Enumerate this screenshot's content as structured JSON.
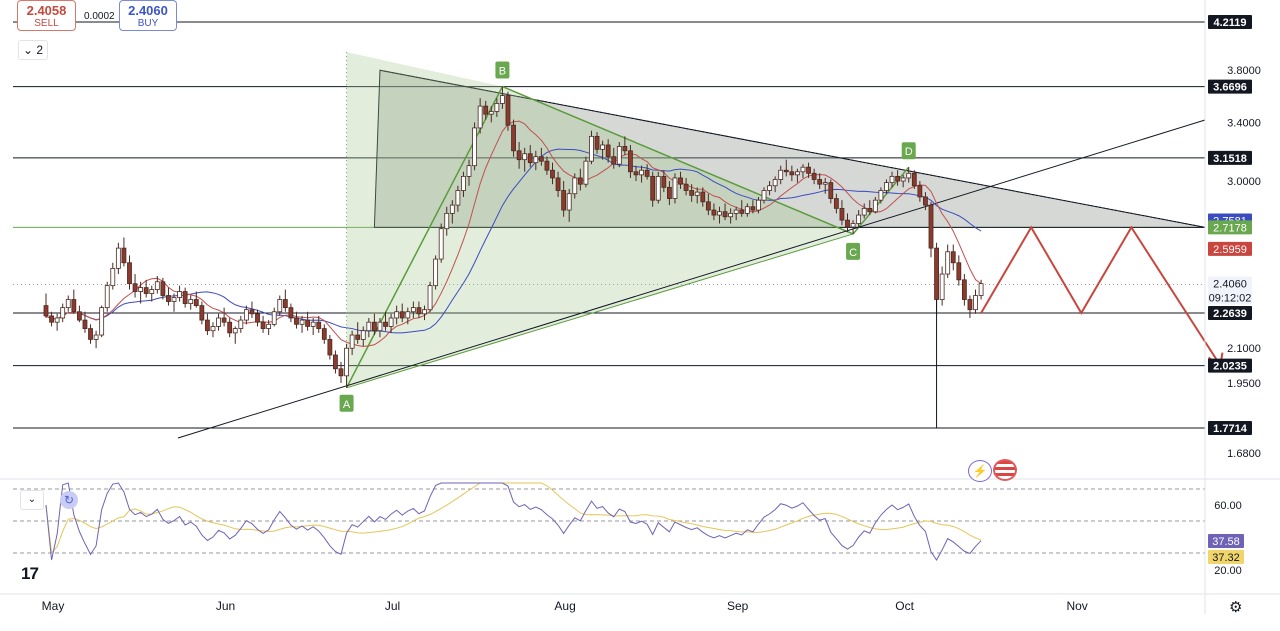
{
  "trade": {
    "sell_price": "2.4058",
    "sell_label": "SELL",
    "buy_price": "2.4060",
    "buy_label": "BUY",
    "spread": "0.0002"
  },
  "indicators_count": "2",
  "colors": {
    "candle_up": "#089981",
    "candle_down": "#8b3a2d",
    "ma_fast": "#c0504d",
    "ma_slow": "#3b4cc0",
    "pattern_fill": "#9fc58a",
    "triangle_fill": "#8a8f86",
    "arrow": "#c8463e",
    "rsi_line": "#6f63b5",
    "rsi_ma": "#e3c65a"
  },
  "icons": [
    "chevron-down-icon",
    "refresh-icon",
    "flash-icon",
    "us-flag-icon",
    "settings-icon",
    "tradingview-logo"
  ],
  "chart_data": {
    "type": "candlestick",
    "price_axis_ticks": [
      "3.8000",
      "3.4000",
      "3.0000",
      "2.1000",
      "1.9500",
      "1.6800"
    ],
    "level_labels": [
      {
        "value": "4.2119",
        "style": "dark"
      },
      {
        "value": "3.6696",
        "style": "dark"
      },
      {
        "value": "3.1518",
        "style": "dark"
      },
      {
        "value": "2.7581",
        "style": "blue"
      },
      {
        "value": "2.7178",
        "style": "green"
      },
      {
        "value": "2.5959",
        "style": "red"
      },
      {
        "value": "2.4060",
        "style": "gray"
      },
      {
        "value": "09:12:02",
        "style": "gray"
      },
      {
        "value": "2.2639",
        "style": "dark"
      },
      {
        "value": "2.0235",
        "style": "dark"
      },
      {
        "value": "1.7714",
        "style": "dark"
      }
    ],
    "horizontal_levels": [
      4.2119,
      3.6696,
      3.1518,
      2.7178,
      2.2639,
      2.0235,
      1.7714
    ],
    "time_axis": [
      "May",
      "Jun",
      "Jul",
      "Aug",
      "Sep",
      "Oct",
      "Nov"
    ],
    "pattern_points": [
      {
        "label": "A",
        "date": "2024-06-24",
        "price": 1.93
      },
      {
        "label": "B",
        "date": "2024-07-22",
        "price": 3.67
      },
      {
        "label": "C",
        "date": "2024-09-23",
        "price": 2.68
      },
      {
        "label": "D",
        "date": "2024-10-03",
        "price": 3.09
      }
    ],
    "candles": [
      [
        "2024-05-01",
        2.3,
        2.36,
        2.24,
        2.25
      ],
      [
        "2024-05-02",
        2.25,
        2.27,
        2.2,
        2.22
      ],
      [
        "2024-05-03",
        2.22,
        2.26,
        2.18,
        2.24
      ],
      [
        "2024-05-04",
        2.24,
        2.31,
        2.22,
        2.29
      ],
      [
        "2024-05-05",
        2.29,
        2.35,
        2.27,
        2.33
      ],
      [
        "2024-05-06",
        2.33,
        2.38,
        2.26,
        2.27
      ],
      [
        "2024-05-07",
        2.27,
        2.3,
        2.22,
        2.23
      ],
      [
        "2024-05-08",
        2.23,
        2.27,
        2.17,
        2.19
      ],
      [
        "2024-05-09",
        2.19,
        2.21,
        2.12,
        2.14
      ],
      [
        "2024-05-10",
        2.14,
        2.18,
        2.1,
        2.16
      ],
      [
        "2024-05-11",
        2.16,
        2.3,
        2.15,
        2.29
      ],
      [
        "2024-05-12",
        2.29,
        2.42,
        2.27,
        2.4
      ],
      [
        "2024-05-13",
        2.4,
        2.52,
        2.38,
        2.49
      ],
      [
        "2024-05-14",
        2.49,
        2.63,
        2.46,
        2.6
      ],
      [
        "2024-05-15",
        2.6,
        2.66,
        2.5,
        2.52
      ],
      [
        "2024-05-16",
        2.52,
        2.56,
        2.38,
        2.41
      ],
      [
        "2024-05-17",
        2.41,
        2.46,
        2.34,
        2.37
      ],
      [
        "2024-05-18",
        2.37,
        2.42,
        2.31,
        2.39
      ],
      [
        "2024-05-19",
        2.39,
        2.43,
        2.34,
        2.36
      ],
      [
        "2024-05-20",
        2.36,
        2.4,
        2.32,
        2.38
      ],
      [
        "2024-05-21",
        2.38,
        2.45,
        2.36,
        2.42
      ],
      [
        "2024-05-22",
        2.42,
        2.44,
        2.33,
        2.35
      ],
      [
        "2024-05-23",
        2.35,
        2.39,
        2.3,
        2.32
      ],
      [
        "2024-05-24",
        2.32,
        2.36,
        2.27,
        2.34
      ],
      [
        "2024-05-25",
        2.34,
        2.4,
        2.32,
        2.37
      ],
      [
        "2024-05-26",
        2.37,
        2.39,
        2.29,
        2.31
      ],
      [
        "2024-05-27",
        2.31,
        2.35,
        2.28,
        2.33
      ],
      [
        "2024-05-28",
        2.33,
        2.37,
        2.29,
        2.3
      ],
      [
        "2024-05-29",
        2.3,
        2.32,
        2.21,
        2.23
      ],
      [
        "2024-05-30",
        2.23,
        2.26,
        2.16,
        2.18
      ],
      [
        "2024-05-31",
        2.18,
        2.22,
        2.15,
        2.2
      ],
      [
        "2024-06-01",
        2.2,
        2.26,
        2.18,
        2.24
      ],
      [
        "2024-06-02",
        2.24,
        2.29,
        2.2,
        2.22
      ],
      [
        "2024-06-03",
        2.22,
        2.24,
        2.15,
        2.17
      ],
      [
        "2024-06-04",
        2.17,
        2.2,
        2.12,
        2.19
      ],
      [
        "2024-06-05",
        2.19,
        2.25,
        2.17,
        2.23
      ],
      [
        "2024-06-06",
        2.23,
        2.3,
        2.21,
        2.28
      ],
      [
        "2024-06-07",
        2.28,
        2.32,
        2.24,
        2.26
      ],
      [
        "2024-06-08",
        2.26,
        2.28,
        2.2,
        2.22
      ],
      [
        "2024-06-09",
        2.22,
        2.25,
        2.17,
        2.19
      ],
      [
        "2024-06-10",
        2.19,
        2.23,
        2.16,
        2.21
      ],
      [
        "2024-06-11",
        2.21,
        2.29,
        2.2,
        2.27
      ],
      [
        "2024-06-12",
        2.27,
        2.35,
        2.25,
        2.33
      ],
      [
        "2024-06-13",
        2.33,
        2.38,
        2.27,
        2.29
      ],
      [
        "2024-06-14",
        2.29,
        2.31,
        2.22,
        2.24
      ],
      [
        "2024-06-15",
        2.24,
        2.27,
        2.19,
        2.21
      ],
      [
        "2024-06-16",
        2.21,
        2.25,
        2.17,
        2.23
      ],
      [
        "2024-06-17",
        2.23,
        2.27,
        2.18,
        2.2
      ],
      [
        "2024-06-18",
        2.2,
        2.24,
        2.16,
        2.22
      ],
      [
        "2024-06-19",
        2.22,
        2.25,
        2.17,
        2.19
      ],
      [
        "2024-06-20",
        2.19,
        2.21,
        2.12,
        2.14
      ],
      [
        "2024-06-21",
        2.14,
        2.16,
        2.05,
        2.07
      ],
      [
        "2024-06-22",
        2.07,
        2.09,
        1.99,
        2.01
      ],
      [
        "2024-06-23",
        2.01,
        2.04,
        1.95,
        1.98
      ],
      [
        "2024-06-24",
        1.98,
        2.12,
        1.93,
        2.1
      ],
      [
        "2024-06-25",
        2.1,
        2.18,
        2.07,
        2.16
      ],
      [
        "2024-06-26",
        2.16,
        2.22,
        2.12,
        2.14
      ],
      [
        "2024-06-27",
        2.14,
        2.2,
        2.11,
        2.18
      ],
      [
        "2024-06-28",
        2.18,
        2.24,
        2.15,
        2.22
      ],
      [
        "2024-06-29",
        2.22,
        2.26,
        2.16,
        2.18
      ],
      [
        "2024-06-30",
        2.18,
        2.24,
        2.15,
        2.22
      ],
      [
        "2024-07-01",
        2.22,
        2.27,
        2.18,
        2.2
      ],
      [
        "2024-07-02",
        2.2,
        2.26,
        2.17,
        2.24
      ],
      [
        "2024-07-03",
        2.24,
        2.3,
        2.21,
        2.27
      ],
      [
        "2024-07-04",
        2.27,
        2.31,
        2.22,
        2.24
      ],
      [
        "2024-07-05",
        2.24,
        2.29,
        2.21,
        2.27
      ],
      [
        "2024-07-06",
        2.27,
        2.32,
        2.24,
        2.29
      ],
      [
        "2024-07-07",
        2.29,
        2.32,
        2.24,
        2.26
      ],
      [
        "2024-07-08",
        2.26,
        2.3,
        2.23,
        2.28
      ],
      [
        "2024-07-09",
        2.28,
        2.42,
        2.27,
        2.4
      ],
      [
        "2024-07-10",
        2.4,
        2.56,
        2.38,
        2.54
      ],
      [
        "2024-07-11",
        2.54,
        2.74,
        2.52,
        2.71
      ],
      [
        "2024-07-12",
        2.71,
        2.84,
        2.67,
        2.8
      ],
      [
        "2024-07-13",
        2.8,
        2.88,
        2.74,
        2.85
      ],
      [
        "2024-07-14",
        2.85,
        2.97,
        2.81,
        2.94
      ],
      [
        "2024-07-15",
        2.94,
        3.06,
        2.9,
        3.03
      ],
      [
        "2024-07-16",
        3.03,
        3.14,
        2.97,
        3.1
      ],
      [
        "2024-07-17",
        3.1,
        3.4,
        3.07,
        3.36
      ],
      [
        "2024-07-18",
        3.36,
        3.58,
        3.32,
        3.52
      ],
      [
        "2024-07-19",
        3.52,
        3.56,
        3.42,
        3.46
      ],
      [
        "2024-07-20",
        3.46,
        3.52,
        3.4,
        3.48
      ],
      [
        "2024-07-21",
        3.48,
        3.58,
        3.44,
        3.54
      ],
      [
        "2024-07-22",
        3.54,
        3.67,
        3.5,
        3.6
      ],
      [
        "2024-07-23",
        3.6,
        3.63,
        3.34,
        3.38
      ],
      [
        "2024-07-24",
        3.38,
        3.42,
        3.16,
        3.2
      ],
      [
        "2024-07-25",
        3.2,
        3.26,
        3.08,
        3.14
      ],
      [
        "2024-07-26",
        3.14,
        3.22,
        3.06,
        3.18
      ],
      [
        "2024-07-27",
        3.18,
        3.24,
        3.09,
        3.12
      ],
      [
        "2024-07-28",
        3.12,
        3.2,
        3.07,
        3.16
      ],
      [
        "2024-07-29",
        3.16,
        3.22,
        3.1,
        3.13
      ],
      [
        "2024-07-30",
        3.13,
        3.16,
        3.04,
        3.07
      ],
      [
        "2024-07-31",
        3.07,
        3.12,
        2.98,
        3.02
      ],
      [
        "2024-08-01",
        3.02,
        3.06,
        2.9,
        2.94
      ],
      [
        "2024-08-02",
        2.94,
        3.0,
        2.78,
        2.82
      ],
      [
        "2024-08-03",
        2.82,
        2.95,
        2.75,
        2.92
      ],
      [
        "2024-08-04",
        2.92,
        3.05,
        2.89,
        3.02
      ],
      [
        "2024-08-05",
        3.02,
        3.08,
        2.94,
        2.98
      ],
      [
        "2024-08-06",
        2.98,
        3.16,
        2.96,
        3.13
      ],
      [
        "2024-08-07",
        3.13,
        3.34,
        3.11,
        3.3
      ],
      [
        "2024-08-08",
        3.3,
        3.33,
        3.18,
        3.21
      ],
      [
        "2024-08-09",
        3.21,
        3.27,
        3.14,
        3.24
      ],
      [
        "2024-08-10",
        3.24,
        3.28,
        3.12,
        3.16
      ],
      [
        "2024-08-11",
        3.16,
        3.22,
        3.08,
        3.11
      ],
      [
        "2024-08-12",
        3.11,
        3.26,
        3.09,
        3.23
      ],
      [
        "2024-08-13",
        3.23,
        3.3,
        3.17,
        3.2
      ],
      [
        "2024-08-14",
        3.2,
        3.24,
        3.02,
        3.06
      ],
      [
        "2024-08-15",
        3.06,
        3.1,
        3.0,
        3.04
      ],
      [
        "2024-08-16",
        3.04,
        3.1,
        2.99,
        3.07
      ],
      [
        "2024-08-17",
        3.07,
        3.11,
        3.01,
        3.03
      ],
      [
        "2024-08-18",
        3.03,
        3.06,
        2.84,
        2.88
      ],
      [
        "2024-08-19",
        2.88,
        3.06,
        2.86,
        3.03
      ],
      [
        "2024-08-20",
        3.03,
        3.07,
        2.93,
        2.96
      ],
      [
        "2024-08-21",
        2.96,
        3.0,
        2.85,
        2.89
      ],
      [
        "2024-08-22",
        2.89,
        3.05,
        2.86,
        3.02
      ],
      [
        "2024-08-23",
        3.02,
        3.06,
        2.95,
        2.98
      ],
      [
        "2024-08-24",
        2.98,
        3.02,
        2.91,
        2.94
      ],
      [
        "2024-08-25",
        2.94,
        2.98,
        2.87,
        2.91
      ],
      [
        "2024-08-26",
        2.91,
        2.96,
        2.86,
        2.93
      ],
      [
        "2024-08-27",
        2.93,
        2.96,
        2.84,
        2.87
      ],
      [
        "2024-08-28",
        2.87,
        2.92,
        2.79,
        2.82
      ],
      [
        "2024-08-29",
        2.82,
        2.86,
        2.76,
        2.79
      ],
      [
        "2024-08-30",
        2.79,
        2.84,
        2.74,
        2.81
      ],
      [
        "2024-08-31",
        2.81,
        2.86,
        2.76,
        2.78
      ],
      [
        "2024-09-01",
        2.78,
        2.83,
        2.74,
        2.8
      ],
      [
        "2024-09-02",
        2.8,
        2.84,
        2.76,
        2.82
      ],
      [
        "2024-09-03",
        2.82,
        2.88,
        2.78,
        2.8
      ],
      [
        "2024-09-04",
        2.8,
        2.86,
        2.78,
        2.84
      ],
      [
        "2024-09-05",
        2.84,
        2.88,
        2.8,
        2.82
      ],
      [
        "2024-09-06",
        2.82,
        2.9,
        2.8,
        2.88
      ],
      [
        "2024-09-07",
        2.88,
        2.96,
        2.86,
        2.94
      ],
      [
        "2024-09-08",
        2.94,
        3.0,
        2.91,
        2.97
      ],
      [
        "2024-09-09",
        2.97,
        3.03,
        2.93,
        3.01
      ],
      [
        "2024-09-10",
        3.01,
        3.1,
        2.98,
        3.07
      ],
      [
        "2024-09-11",
        3.07,
        3.14,
        3.03,
        3.06
      ],
      [
        "2024-09-12",
        3.06,
        3.1,
        3.0,
        3.04
      ],
      [
        "2024-09-13",
        3.04,
        3.08,
        2.99,
        3.06
      ],
      [
        "2024-09-14",
        3.06,
        3.11,
        3.02,
        3.09
      ],
      [
        "2024-09-15",
        3.09,
        3.12,
        3.02,
        3.05
      ],
      [
        "2024-09-16",
        3.05,
        3.08,
        2.98,
        3.01
      ],
      [
        "2024-09-17",
        3.01,
        3.05,
        2.95,
        2.98
      ],
      [
        "2024-09-18",
        2.98,
        3.02,
        2.92,
        2.99
      ],
      [
        "2024-09-19",
        2.99,
        3.01,
        2.86,
        2.89
      ],
      [
        "2024-09-20",
        2.89,
        2.92,
        2.8,
        2.83
      ],
      [
        "2024-09-21",
        2.83,
        2.88,
        2.73,
        2.76
      ],
      [
        "2024-09-22",
        2.76,
        2.8,
        2.69,
        2.72
      ],
      [
        "2024-09-23",
        2.72,
        2.76,
        2.68,
        2.74
      ],
      [
        "2024-09-24",
        2.74,
        2.82,
        2.72,
        2.79
      ],
      [
        "2024-09-25",
        2.79,
        2.86,
        2.77,
        2.83
      ],
      [
        "2024-09-26",
        2.83,
        2.88,
        2.79,
        2.81
      ],
      [
        "2024-09-27",
        2.81,
        2.9,
        2.8,
        2.88
      ],
      [
        "2024-09-28",
        2.88,
        2.96,
        2.86,
        2.94
      ],
      [
        "2024-09-29",
        2.94,
        3.01,
        2.92,
        2.99
      ],
      [
        "2024-09-30",
        2.99,
        3.06,
        2.96,
        3.03
      ],
      [
        "2024-10-01",
        3.03,
        3.07,
        2.97,
        3.0
      ],
      [
        "2024-10-02",
        3.0,
        3.04,
        2.96,
        3.02
      ],
      [
        "2024-10-03",
        3.02,
        3.09,
        2.99,
        3.05
      ],
      [
        "2024-10-04",
        3.05,
        3.07,
        2.95,
        2.97
      ],
      [
        "2024-10-05",
        2.97,
        3.0,
        2.87,
        2.9
      ],
      [
        "2024-10-06",
        2.9,
        2.93,
        2.82,
        2.85
      ],
      [
        "2024-10-07",
        2.85,
        2.87,
        2.55,
        2.6
      ],
      [
        "2024-10-08",
        2.6,
        2.63,
        2.26,
        2.33
      ],
      [
        "2024-10-09",
        2.33,
        2.5,
        2.3,
        2.46
      ],
      [
        "2024-10-10",
        2.46,
        2.62,
        2.44,
        2.58
      ],
      [
        "2024-10-11",
        2.58,
        2.62,
        2.48,
        2.52
      ],
      [
        "2024-10-12",
        2.52,
        2.56,
        2.4,
        2.43
      ],
      [
        "2024-10-13",
        2.43,
        2.46,
        2.3,
        2.33
      ],
      [
        "2024-10-14",
        2.33,
        2.35,
        2.24,
        2.28
      ],
      [
        "2024-10-15",
        2.28,
        2.38,
        2.26,
        2.35
      ],
      [
        "2024-10-16",
        2.35,
        2.43,
        2.33,
        2.41
      ]
    ],
    "rsi_axis_ticks": [
      "60.00",
      "20.00"
    ],
    "rsi_labels": [
      {
        "value": "37.58",
        "style": "purple"
      },
      {
        "value": "37.32",
        "style": "yellow"
      }
    ],
    "projection_path": [
      {
        "date": "2024-10-16",
        "price": 2.2639
      },
      {
        "date": "2024-10-25",
        "price": 2.7178
      },
      {
        "date": "2024-11-03",
        "price": 2.2639
      },
      {
        "date": "2024-11-12",
        "price": 2.7178
      },
      {
        "date": "2024-11-28",
        "price": 2.0235
      }
    ]
  }
}
